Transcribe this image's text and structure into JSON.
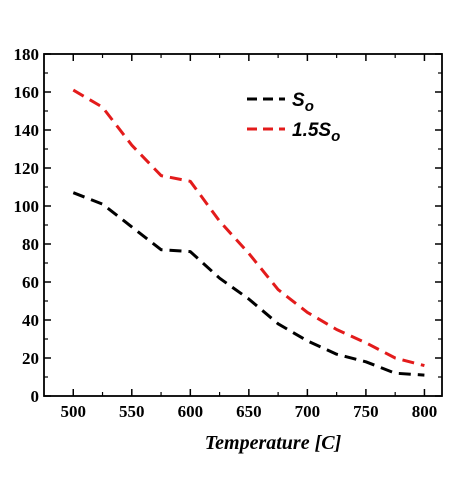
{
  "chart_data": {
    "type": "line",
    "title": "",
    "xlabel": "Temperature [C]",
    "ylabel": "",
    "xlim": [
      475,
      815
    ],
    "ylim": [
      0,
      180
    ],
    "xticks": [
      500,
      550,
      600,
      650,
      700,
      750,
      800
    ],
    "yticks": [
      0,
      20,
      40,
      60,
      80,
      100,
      120,
      140,
      160,
      180
    ],
    "grid": false,
    "legend_position": "top-right",
    "series": [
      {
        "name": "So",
        "name_main": "S",
        "name_sub": "o",
        "color": "#000000",
        "dash": "dashed",
        "x": [
          500,
          525,
          550,
          575,
          600,
          625,
          650,
          675,
          700,
          725,
          750,
          775,
          800
        ],
        "y": [
          107,
          101,
          89,
          77,
          76,
          62,
          51,
          38,
          29,
          22,
          18,
          12,
          11
        ]
      },
      {
        "name": "1.5So",
        "name_main": "1.5S",
        "name_sub": "o",
        "color": "#e31b1b",
        "dash": "dashed",
        "x": [
          500,
          525,
          550,
          575,
          600,
          625,
          650,
          675,
          700,
          725,
          750,
          775,
          800
        ],
        "y": [
          161,
          152,
          132,
          116,
          113,
          92,
          75,
          56,
          44,
          35,
          28,
          20,
          16
        ]
      }
    ]
  }
}
